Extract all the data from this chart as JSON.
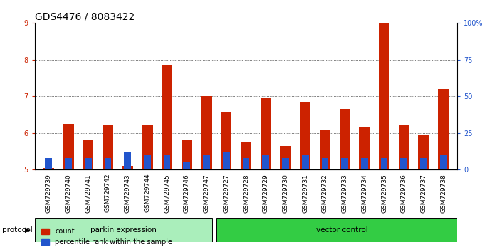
{
  "title": "GDS4476 / 8083422",
  "samples": [
    "GSM729739",
    "GSM729740",
    "GSM729741",
    "GSM729742",
    "GSM729743",
    "GSM729744",
    "GSM729745",
    "GSM729746",
    "GSM729747",
    "GSM729727",
    "GSM729728",
    "GSM729729",
    "GSM729730",
    "GSM729731",
    "GSM729732",
    "GSM729733",
    "GSM729734",
    "GSM729735",
    "GSM729736",
    "GSM729737",
    "GSM729738"
  ],
  "count_values": [
    5.05,
    6.25,
    5.8,
    6.2,
    5.1,
    6.2,
    7.85,
    5.8,
    7.0,
    6.55,
    5.75,
    6.95,
    5.65,
    6.85,
    6.1,
    6.65,
    6.15,
    9.0,
    6.2,
    5.95,
    7.2
  ],
  "percentile_values": [
    8,
    8,
    8,
    8,
    12,
    10,
    10,
    5,
    10,
    12,
    8,
    10,
    8,
    10,
    8,
    8,
    8,
    8,
    8,
    8,
    10
  ],
  "ylim_left": [
    5,
    9
  ],
  "ylim_right": [
    0,
    100
  ],
  "yticks_left": [
    5,
    6,
    7,
    8,
    9
  ],
  "yticks_right": [
    0,
    25,
    50,
    75,
    100
  ],
  "ytick_labels_right": [
    "0",
    "25",
    "50",
    "75",
    "100%"
  ],
  "bar_color_red": "#CC2200",
  "bar_color_blue": "#2255CC",
  "bar_width": 0.55,
  "blue_bar_width": 0.35,
  "group1_label": "parkin expression",
  "group2_label": "vector control",
  "group1_count": 9,
  "group2_count": 12,
  "protocol_label": "protocol",
  "legend_count": "count",
  "legend_percentile": "percentile rank within the sample",
  "bg_color_group1": "#AAEEBB",
  "bg_color_group2": "#33CC44",
  "title_fontsize": 10,
  "axis_tick_fontsize": 7,
  "label_fontsize": 6.5,
  "ylabel_color_left": "#CC2200",
  "ylabel_color_right": "#2255CC",
  "grid_color": "black",
  "grid_lw": 0.5,
  "xtick_bg": "#CCCCCC"
}
